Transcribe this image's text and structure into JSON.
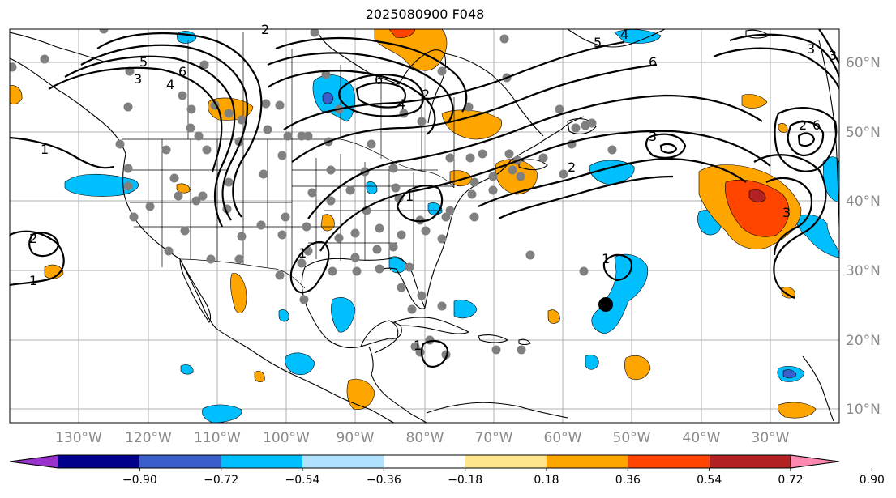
{
  "title": "2025080900 F048",
  "latitude_labels": [
    "60°N",
    "50°N",
    "40°N",
    "30°N",
    "20°N",
    "10°N"
  ],
  "longitude_labels": [
    "130°W",
    "120°W",
    "110°W",
    "100°W",
    "90°W",
    "80°W",
    "70°W",
    "60°W",
    "50°W",
    "40°W",
    "30°W"
  ],
  "colorbar": {
    "tick_labels": [
      "−0.90",
      "−0.72",
      "−0.54",
      "−0.36",
      "−0.18",
      "0.18",
      "0.36",
      "0.54",
      "0.72",
      "0.90"
    ],
    "colors": [
      "#9932cc",
      "#00008b",
      "#3a5fcd",
      "#00bfff",
      "#b0e2ff",
      "#ffffff",
      "#ffe68a",
      "#ffa500",
      "#ff4500",
      "#b22222",
      "#ff88b0"
    ]
  },
  "contour_labels": [
    "1",
    "2",
    "3",
    "4",
    "5",
    "6",
    "6",
    "4",
    "3",
    "5",
    "6",
    "4",
    "3",
    "6",
    "2",
    "3",
    "1",
    "1",
    "2",
    "1",
    "1",
    "1",
    "2",
    "3",
    "2"
  ],
  "colors": {
    "land_outline": "#000000",
    "grid": "#b0b0b0",
    "station_dot": "#808080",
    "storm_marker": "#000000"
  }
}
